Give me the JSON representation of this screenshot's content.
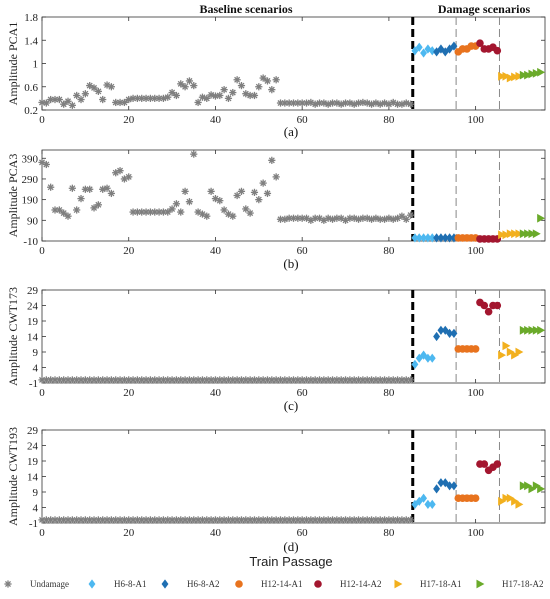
{
  "figure": {
    "baseline_header": "Baseline scenarios",
    "damage_header": "Damage scenarios",
    "xlabel": "Train Passage",
    "legend": [
      {
        "label": "Undamage",
        "marker": "asterisk",
        "color": "#7f7f7f"
      },
      {
        "label": "H6-8-A1",
        "marker": "diamond",
        "color": "#4db8f0"
      },
      {
        "label": "H6-8-A2",
        "marker": "diamond",
        "color": "#1f6fb2"
      },
      {
        "label": "H12-14-A1",
        "marker": "circle",
        "color": "#e8731e"
      },
      {
        "label": "H12-14-A2",
        "marker": "circle",
        "color": "#a3162f"
      },
      {
        "label": "H17-18-A1",
        "marker": "triangle-right",
        "color": "#f2b01e"
      },
      {
        "label": "H17-18-A2",
        "marker": "triangle-right",
        "color": "#6aaa2a"
      }
    ]
  },
  "chart_data": [
    {
      "type": "scatter",
      "panel_tag": "(a)",
      "ylabel": "Amplitude PCA1",
      "xlim": [
        0,
        116
      ],
      "ylim": [
        0.2,
        1.8
      ],
      "x_ticks": [
        0,
        20,
        40,
        60,
        80,
        100
      ],
      "y_ticks": [
        0.2,
        0.6,
        1,
        1.4,
        1.8
      ],
      "y_tick_labels": [
        "0.2",
        "0.6",
        "1",
        "1.4",
        "1.8"
      ],
      "x_tick_labels_visible": true,
      "dashed_lines_x": [
        85.5
      ],
      "thin_dashed_lines_x": [
        95.5,
        105.5
      ],
      "series": [
        {
          "name": "Undamage",
          "values": [
            0.33,
            0.32,
            0.38,
            0.38,
            0.38,
            0.3,
            0.35,
            0.28,
            0.45,
            0.38,
            0.48,
            0.62,
            0.58,
            0.52,
            0.38,
            0.63,
            0.6,
            0.33,
            0.33,
            0.33,
            0.38,
            0.4,
            0.4,
            0.4,
            0.4,
            0.4,
            0.4,
            0.4,
            0.4,
            0.42,
            0.5,
            0.45,
            0.65,
            0.6,
            0.7,
            0.62,
            0.33,
            0.42,
            0.4,
            0.46,
            0.44,
            0.45,
            0.55,
            0.4,
            0.5,
            0.72,
            0.62,
            0.48,
            0.45,
            0.45,
            0.6,
            0.75,
            0.7,
            0.55,
            0.72,
            0.32,
            0.32,
            0.32,
            0.32,
            0.32,
            0.32,
            0.32,
            0.33,
            0.3,
            0.32,
            0.32,
            0.3,
            0.32,
            0.32,
            0.3,
            0.32,
            0.32,
            0.3,
            0.32,
            0.33,
            0.32,
            0.3,
            0.32,
            0.3,
            0.32,
            0.3,
            0.33,
            0.3,
            0.3,
            0.32,
            0.3
          ]
        },
        {
          "name": "H6-8-A1",
          "x": [
            86,
            87,
            88,
            89,
            90
          ],
          "values": [
            1.22,
            1.28,
            1.18,
            1.25,
            1.22
          ]
        },
        {
          "name": "H6-8-A2",
          "x": [
            91,
            92,
            93,
            94,
            95
          ],
          "values": [
            1.2,
            1.25,
            1.2,
            1.25,
            1.3
          ]
        },
        {
          "name": "H12-14-A1",
          "x": [
            96,
            97,
            98,
            99,
            100
          ],
          "values": [
            1.2,
            1.25,
            1.25,
            1.3,
            1.3
          ]
        },
        {
          "name": "H12-14-A2",
          "x": [
            101,
            102,
            103,
            104,
            105
          ],
          "values": [
            1.35,
            1.25,
            1.25,
            1.28,
            1.22
          ]
        },
        {
          "name": "H17-18-A1",
          "x": [
            106,
            107,
            108,
            109,
            110
          ],
          "values": [
            0.78,
            0.78,
            0.75,
            0.77,
            0.78
          ]
        },
        {
          "name": "H17-18-A2",
          "x": [
            111,
            112,
            113,
            114,
            115
          ],
          "values": [
            0.8,
            0.8,
            0.82,
            0.83,
            0.85
          ]
        }
      ]
    },
    {
      "type": "scatter",
      "panel_tag": "(b)",
      "ylabel": "Amplitude PCA3",
      "xlim": [
        0,
        116
      ],
      "ylim": [
        -10,
        430
      ],
      "x_ticks": [
        0,
        20,
        40,
        60,
        80,
        100
      ],
      "y_ticks": [
        -10,
        90,
        190,
        290,
        390
      ],
      "y_tick_labels": [
        "-10",
        "90",
        "190",
        "290",
        "390"
      ],
      "x_tick_labels_visible": true,
      "dashed_lines_x": [
        85.5
      ],
      "thin_dashed_lines_x": [
        95.5,
        105.5
      ],
      "series": [
        {
          "name": "Undamage",
          "values": [
            370,
            360,
            250,
            140,
            140,
            125,
            110,
            245,
            140,
            195,
            240,
            240,
            150,
            165,
            240,
            245,
            220,
            320,
            330,
            290,
            300,
            130,
            130,
            130,
            130,
            130,
            130,
            130,
            130,
            130,
            145,
            170,
            130,
            230,
            180,
            410,
            130,
            120,
            110,
            230,
            195,
            185,
            140,
            120,
            110,
            210,
            230,
            145,
            125,
            225,
            190,
            270,
            220,
            380,
            300,
            95,
            95,
            100,
            100,
            100,
            100,
            100,
            90,
            100,
            100,
            90,
            100,
            95,
            100,
            100,
            90,
            100,
            100,
            95,
            100,
            100,
            95,
            100,
            95,
            95,
            100,
            95,
            100,
            110,
            95,
            115
          ]
        },
        {
          "name": "H6-8-A1",
          "x": [
            86,
            87,
            88,
            89,
            90
          ],
          "values": [
            5,
            5,
            5,
            5,
            5
          ]
        },
        {
          "name": "H6-8-A2",
          "x": [
            91,
            92,
            93,
            94,
            95
          ],
          "values": [
            5,
            5,
            5,
            5,
            5
          ]
        },
        {
          "name": "H12-14-A1",
          "x": [
            96,
            97,
            98,
            99,
            100
          ],
          "values": [
            5,
            5,
            5,
            5,
            5
          ]
        },
        {
          "name": "H12-14-A2",
          "x": [
            101,
            102,
            103,
            104,
            105
          ],
          "values": [
            0,
            0,
            0,
            0,
            0
          ]
        },
        {
          "name": "H17-18-A1",
          "x": [
            106,
            107,
            108,
            109,
            110
          ],
          "values": [
            20,
            20,
            25,
            25,
            25
          ]
        },
        {
          "name": "H17-18-A2",
          "x": [
            111,
            112,
            113,
            114,
            115
          ],
          "values": [
            25,
            25,
            25,
            25,
            100
          ]
        }
      ]
    },
    {
      "type": "scatter",
      "panel_tag": "(c)",
      "ylabel": "Amplitude CWT173",
      "xlim": [
        0,
        116
      ],
      "ylim": [
        -1,
        29
      ],
      "x_ticks": [
        0,
        20,
        40,
        60,
        80,
        100
      ],
      "y_ticks": [
        -1,
        4,
        9,
        14,
        19,
        24,
        29
      ],
      "y_tick_labels": [
        "-1",
        "4",
        "9",
        "14",
        "19",
        "24",
        "29"
      ],
      "x_tick_labels_visible": true,
      "dashed_lines_x": [
        85.5
      ],
      "thin_dashed_lines_x": [
        95.5,
        105.5
      ],
      "series": [
        {
          "name": "Undamage",
          "values": [
            0,
            0,
            0,
            0,
            0,
            0,
            0,
            0,
            0,
            0,
            0,
            0,
            0,
            0,
            0,
            0,
            0,
            0,
            0,
            0,
            0,
            0,
            0,
            0,
            0,
            0,
            0,
            0,
            0,
            0,
            0,
            0,
            0,
            0,
            0,
            0,
            0,
            0,
            0,
            0,
            0,
            0,
            0,
            0,
            0,
            0,
            0,
            0,
            0,
            0,
            0,
            0,
            0,
            0,
            0,
            0,
            0,
            0,
            0,
            0,
            0,
            0,
            0,
            0,
            0,
            0,
            0,
            0,
            0,
            0,
            0,
            0,
            0,
            0,
            0,
            0,
            0,
            0,
            0,
            0,
            0,
            0,
            0,
            0,
            0,
            0
          ]
        },
        {
          "name": "H6-8-A1",
          "x": [
            86,
            87,
            88,
            89,
            90
          ],
          "values": [
            5,
            7,
            8,
            7,
            7
          ]
        },
        {
          "name": "H6-8-A2",
          "x": [
            91,
            92,
            93,
            94,
            95
          ],
          "values": [
            14,
            16,
            16,
            15,
            15
          ]
        },
        {
          "name": "H12-14-A1",
          "x": [
            96,
            97,
            98,
            99,
            100
          ],
          "values": [
            10,
            10,
            10,
            10,
            10
          ]
        },
        {
          "name": "H12-14-A2",
          "x": [
            101,
            102,
            103,
            104,
            105
          ],
          "values": [
            25,
            24,
            22,
            24,
            24
          ]
        },
        {
          "name": "H17-18-A1",
          "x": [
            106,
            107,
            108,
            109,
            110
          ],
          "values": [
            8,
            11,
            9,
            8,
            9
          ]
        },
        {
          "name": "H17-18-A2",
          "x": [
            111,
            112,
            113,
            114,
            115
          ],
          "values": [
            16,
            16,
            16,
            16,
            16
          ]
        }
      ]
    },
    {
      "type": "scatter",
      "panel_tag": "(d)",
      "ylabel": "Amplitude CWT193",
      "xlim": [
        0,
        116
      ],
      "ylim": [
        -1,
        29
      ],
      "x_ticks": [
        0,
        20,
        40,
        60,
        80,
        100
      ],
      "y_ticks": [
        -1,
        4,
        9,
        14,
        19,
        24,
        29
      ],
      "y_tick_labels": [
        "-1",
        "4",
        "9",
        "14",
        "19",
        "24",
        "29"
      ],
      "x_tick_labels_visible": true,
      "dashed_lines_x": [
        85.5
      ],
      "thin_dashed_lines_x": [
        95.5,
        105.5
      ],
      "series": [
        {
          "name": "Undamage",
          "values": [
            0,
            0,
            0,
            0,
            0,
            0,
            0,
            0,
            0,
            0,
            0,
            0,
            0,
            0,
            0,
            0,
            0,
            0,
            0,
            0,
            0,
            0,
            0,
            0,
            0,
            0,
            0,
            0,
            0,
            0,
            0,
            0,
            0,
            0,
            0,
            0,
            0,
            0,
            0,
            0,
            0,
            0,
            0,
            0,
            0,
            0,
            0,
            0,
            0,
            0,
            0,
            0,
            0,
            0,
            0,
            0,
            0,
            0,
            0,
            0,
            0,
            0,
            0,
            0,
            0,
            0,
            0,
            0,
            0,
            0,
            0,
            0,
            0,
            0,
            0,
            0,
            0,
            0,
            0,
            0,
            0,
            0,
            0,
            0,
            0,
            0
          ]
        },
        {
          "name": "H6-8-A1",
          "x": [
            86,
            87,
            88,
            89,
            90
          ],
          "values": [
            5,
            6,
            7,
            5,
            5
          ]
        },
        {
          "name": "H6-8-A2",
          "x": [
            91,
            92,
            93,
            94,
            95
          ],
          "values": [
            10,
            12,
            12,
            11,
            11
          ]
        },
        {
          "name": "H12-14-A1",
          "x": [
            96,
            97,
            98,
            99,
            100
          ],
          "values": [
            7,
            7,
            7,
            7,
            7
          ]
        },
        {
          "name": "H12-14-A2",
          "x": [
            101,
            102,
            103,
            104,
            105
          ],
          "values": [
            18,
            18,
            16,
            17,
            18
          ]
        },
        {
          "name": "H17-18-A1",
          "x": [
            106,
            107,
            108,
            109,
            110
          ],
          "values": [
            6,
            7,
            7,
            6,
            5
          ]
        },
        {
          "name": "H17-18-A2",
          "x": [
            111,
            112,
            113,
            114,
            115
          ],
          "values": [
            11,
            11,
            10,
            11,
            10
          ]
        }
      ]
    }
  ]
}
